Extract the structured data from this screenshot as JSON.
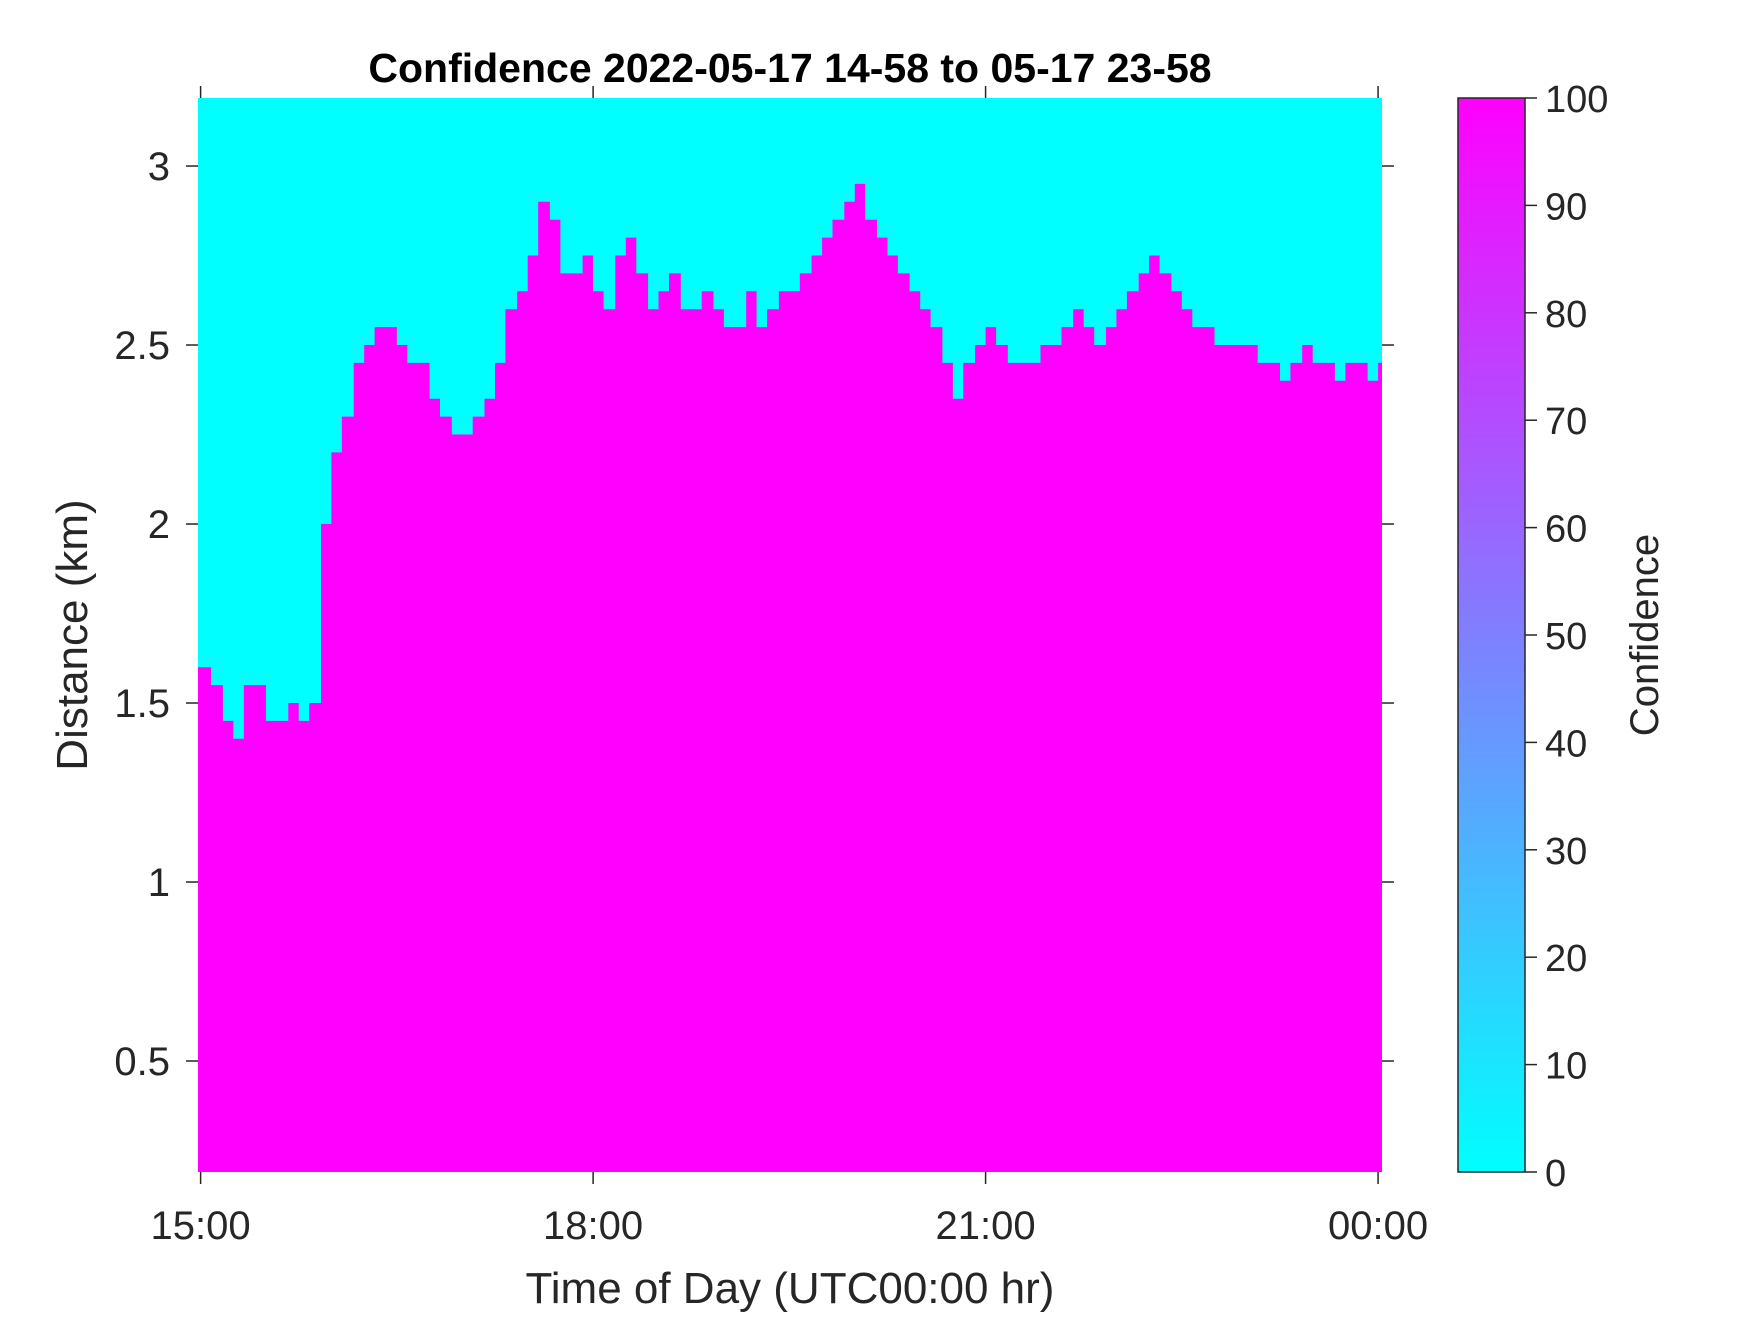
{
  "chart_data": {
    "type": "heatmap",
    "title": "Confidence 2022-05-17 14-58 to 05-17 23-58",
    "xlabel": "Time of Day (UTC00:00 hr)",
    "ylabel": "Distance (km)",
    "x_unit": "hours since 00:00 UTC on 2022-05-17",
    "xlim": [
      14.98,
      24.03
    ],
    "ylim": [
      0.19,
      3.19
    ],
    "x_ticks": [
      {
        "value": 15,
        "label": "15:00"
      },
      {
        "value": 18,
        "label": "18:00"
      },
      {
        "value": 21,
        "label": "21:00"
      },
      {
        "value": 24,
        "label": "00:00"
      }
    ],
    "y_ticks": [
      {
        "value": 0.5,
        "label": "0.5"
      },
      {
        "value": 1,
        "label": "1"
      },
      {
        "value": 1.5,
        "label": "1.5"
      },
      {
        "value": 2,
        "label": "2"
      },
      {
        "value": 2.5,
        "label": "2.5"
      },
      {
        "value": 3,
        "label": "3"
      }
    ],
    "colorbar": {
      "label": "Confidence",
      "range": [
        0,
        100
      ],
      "ticks": [
        0,
        10,
        20,
        30,
        40,
        50,
        60,
        70,
        80,
        90,
        100
      ],
      "colormap": "cool",
      "color_min": "#00ffff",
      "color_max": "#ff00ff"
    },
    "grid": false,
    "cell_values": [
      0,
      100
    ],
    "boundary_description": "Confidence is 100 below a distance boundary and 0 above it; boundary sampled along time.",
    "boundary": {
      "x": [
        15.0,
        15.08,
        15.17,
        15.25,
        15.33,
        15.42,
        15.5,
        15.58,
        15.67,
        15.75,
        15.83,
        15.92,
        16.0,
        16.08,
        16.17,
        16.25,
        16.33,
        16.42,
        16.5,
        16.58,
        16.67,
        16.75,
        16.83,
        16.92,
        17.0,
        17.08,
        17.17,
        17.25,
        17.33,
        17.42,
        17.5,
        17.58,
        17.67,
        17.75,
        17.83,
        17.92,
        18.0,
        18.08,
        18.17,
        18.25,
        18.33,
        18.42,
        18.5,
        18.58,
        18.67,
        18.75,
        18.83,
        18.92,
        19.0,
        19.08,
        19.17,
        19.25,
        19.33,
        19.42,
        19.5,
        19.58,
        19.67,
        19.75,
        19.83,
        19.92,
        20.0,
        20.08,
        20.17,
        20.25,
        20.33,
        20.42,
        20.5,
        20.58,
        20.67,
        20.75,
        20.83,
        20.92,
        21.0,
        21.08,
        21.17,
        21.25,
        21.33,
        21.42,
        21.5,
        21.58,
        21.67,
        21.75,
        21.83,
        21.92,
        22.0,
        22.08,
        22.17,
        22.25,
        22.33,
        22.42,
        22.5,
        22.58,
        22.67,
        22.75,
        22.83,
        22.92,
        23.0,
        23.08,
        23.17,
        23.25,
        23.33,
        23.42,
        23.5,
        23.58,
        23.67,
        23.75,
        23.83,
        23.92,
        24.0
      ],
      "y": [
        1.6,
        1.55,
        1.45,
        1.4,
        1.55,
        1.55,
        1.45,
        1.45,
        1.5,
        1.45,
        1.5,
        2.0,
        2.2,
        2.3,
        2.45,
        2.5,
        2.55,
        2.55,
        2.5,
        2.45,
        2.45,
        2.35,
        2.3,
        2.25,
        2.25,
        2.3,
        2.35,
        2.45,
        2.6,
        2.65,
        2.75,
        2.9,
        2.85,
        2.7,
        2.7,
        2.75,
        2.65,
        2.6,
        2.75,
        2.8,
        2.7,
        2.6,
        2.65,
        2.7,
        2.6,
        2.6,
        2.65,
        2.6,
        2.55,
        2.55,
        2.65,
        2.55,
        2.6,
        2.65,
        2.65,
        2.7,
        2.75,
        2.8,
        2.85,
        2.9,
        2.95,
        2.85,
        2.8,
        2.75,
        2.7,
        2.65,
        2.6,
        2.55,
        2.45,
        2.35,
        2.45,
        2.5,
        2.55,
        2.5,
        2.45,
        2.45,
        2.45,
        2.5,
        2.5,
        2.55,
        2.6,
        2.55,
        2.5,
        2.55,
        2.6,
        2.65,
        2.7,
        2.75,
        2.7,
        2.65,
        2.6,
        2.55,
        2.55,
        2.5,
        2.5,
        2.5,
        2.5,
        2.45,
        2.45,
        2.4,
        2.45,
        2.5,
        2.45,
        2.45,
        2.4,
        2.45,
        2.45,
        2.4,
        2.45
      ]
    }
  }
}
